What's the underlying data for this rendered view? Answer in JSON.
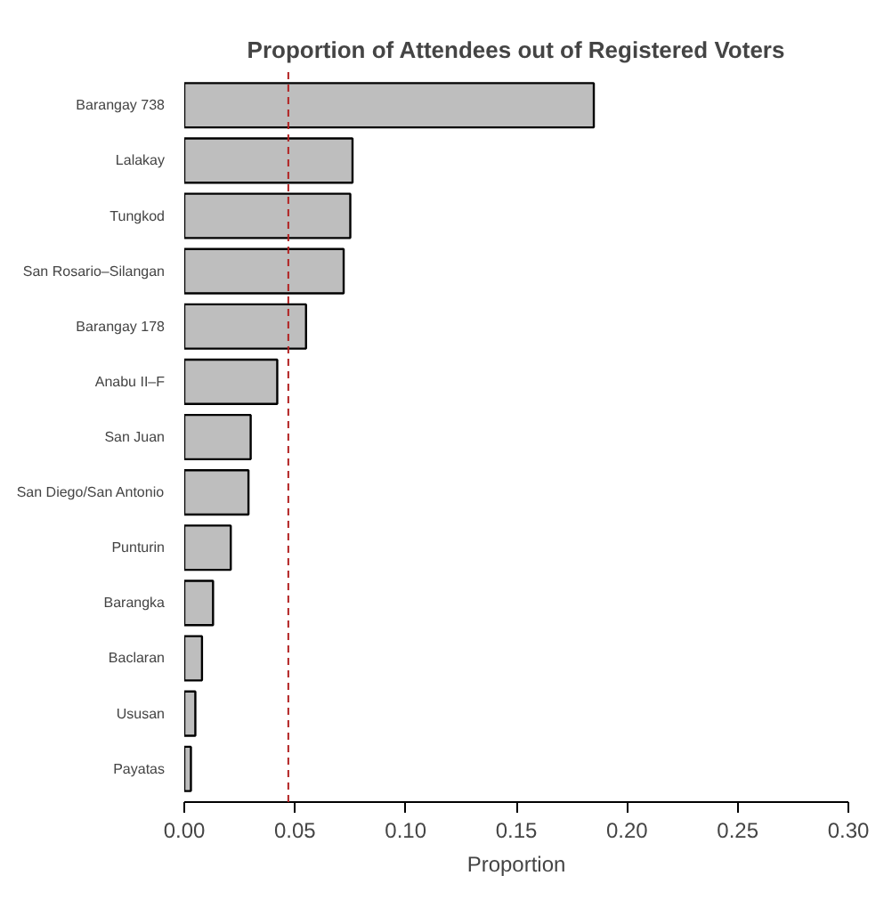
{
  "chart_data": {
    "type": "bar",
    "orientation": "horizontal",
    "title": "Proportion of Attendees out of Registered Voters",
    "xlabel": "Proportion",
    "categories": [
      "Barangay 738",
      "Lalakay",
      "Tungkod",
      "San Rosario–Silangan",
      "Barangay 178",
      "Anabu II–F",
      "San Juan",
      "San Diego/San Antonio",
      "Punturin",
      "Barangka",
      "Baclaran",
      "Ususan",
      "Payatas"
    ],
    "values": [
      0.185,
      0.076,
      0.075,
      0.072,
      0.055,
      0.042,
      0.03,
      0.029,
      0.021,
      0.013,
      0.008,
      0.005,
      0.003
    ],
    "color": "#bebebe",
    "xlim": [
      0,
      0.3
    ],
    "xticks": [
      {
        "value": 0,
        "label": "0.00"
      },
      {
        "value": 0.05,
        "label": "0.05"
      },
      {
        "value": 0.1,
        "label": "0.10"
      },
      {
        "value": 0.15,
        "label": "0.15"
      },
      {
        "value": 0.2,
        "label": "0.20"
      },
      {
        "value": 0.25,
        "label": "0.25"
      },
      {
        "value": 0.3,
        "label": "0.30"
      }
    ],
    "ref_lines": [
      {
        "axis": "x",
        "value": 0.047,
        "label": null,
        "color": "#b22222",
        "line_style": "dashed"
      }
    ],
    "grid": false
  }
}
